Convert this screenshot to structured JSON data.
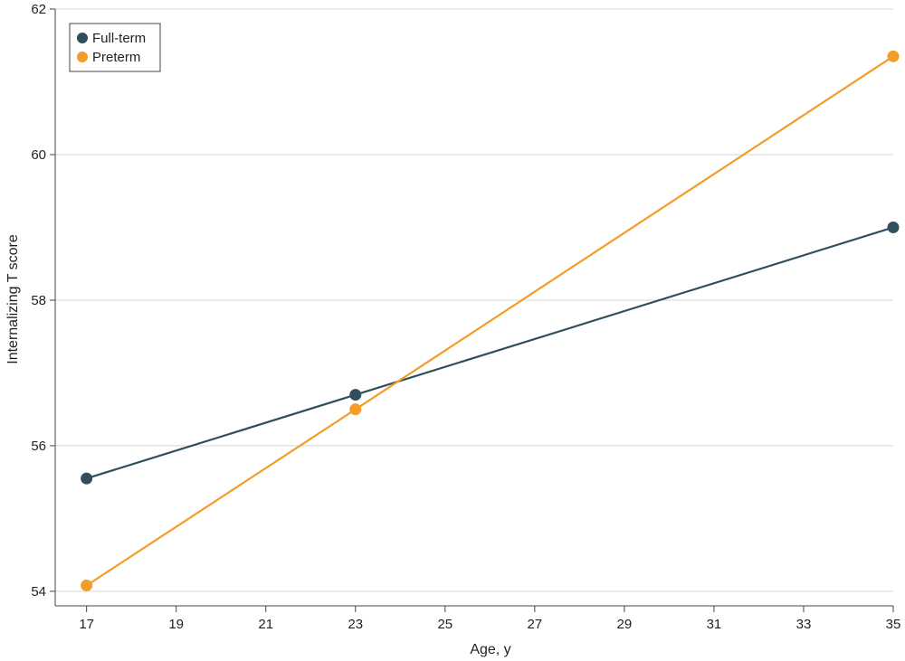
{
  "chart_data": {
    "type": "line",
    "xlabel": "Age, y",
    "ylabel": "Internalizing T score",
    "xlim": [
      16.3,
      35
    ],
    "ylim": [
      53.8,
      62
    ],
    "x_ticks": [
      17,
      19,
      21,
      23,
      25,
      27,
      29,
      31,
      33,
      35
    ],
    "y_ticks": [
      54,
      56,
      58,
      60,
      62
    ],
    "x_tick_labels": [
      "17",
      "19",
      "21",
      "23",
      "25",
      "27",
      "29",
      "31",
      "33",
      "35"
    ],
    "y_tick_labels": [
      "54",
      "56",
      "58",
      "60",
      "62"
    ],
    "grid": "horizontal",
    "legend": "top-left",
    "series": [
      {
        "name": "Full-term",
        "color": "#2f4f5f",
        "x": [
          17,
          23,
          35
        ],
        "y": [
          55.55,
          56.7,
          59.0
        ]
      },
      {
        "name": "Preterm",
        "color": "#f39c27",
        "x": [
          17,
          23,
          35
        ],
        "y": [
          54.08,
          56.5,
          61.35
        ]
      }
    ]
  }
}
